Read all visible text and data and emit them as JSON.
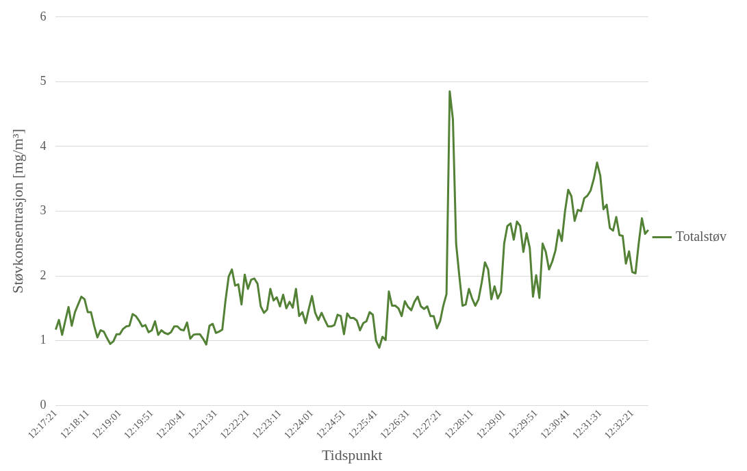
{
  "chart_data": {
    "type": "line",
    "xlabel": "Tidspunkt",
    "ylabel": "Støvkonsentrasjon [mg/m³]",
    "categories": [
      "12:17:21",
      null,
      null,
      null,
      null,
      null,
      null,
      null,
      null,
      null,
      "12:18:11",
      null,
      null,
      null,
      null,
      null,
      null,
      null,
      null,
      null,
      "12:19:01",
      null,
      null,
      null,
      null,
      null,
      null,
      null,
      null,
      null,
      "12:19:51",
      null,
      null,
      null,
      null,
      null,
      null,
      null,
      null,
      null,
      "12:20:41",
      null,
      null,
      null,
      null,
      null,
      null,
      null,
      null,
      null,
      "12:21:31",
      null,
      null,
      null,
      null,
      null,
      null,
      null,
      null,
      null,
      "12:22:21",
      null,
      null,
      null,
      null,
      null,
      null,
      null,
      null,
      null,
      "12:23:11",
      null,
      null,
      null,
      null,
      null,
      null,
      null,
      null,
      null,
      "12:24:01",
      null,
      null,
      null,
      null,
      null,
      null,
      null,
      null,
      null,
      "12:24:51",
      null,
      null,
      null,
      null,
      null,
      null,
      null,
      null,
      null,
      "12:25:41",
      null,
      null,
      null,
      null,
      null,
      null,
      null,
      null,
      null,
      "12:26:31",
      null,
      null,
      null,
      null,
      null,
      null,
      null,
      null,
      null,
      "12:27:21",
      null,
      null,
      null,
      null,
      null,
      null,
      null,
      null,
      null,
      "12:28:11",
      null,
      null,
      null,
      null,
      null,
      null,
      null,
      null,
      null,
      "12:29:01",
      null,
      null,
      null,
      null,
      null,
      null,
      null,
      null,
      null,
      "12:29:51",
      null,
      null,
      null,
      null,
      null,
      null,
      null,
      null,
      null,
      "12:30:41",
      null,
      null,
      null,
      null,
      null,
      null,
      null,
      null,
      null,
      "12:31:31",
      null,
      null,
      null,
      null,
      null,
      null,
      null,
      null,
      null,
      "12:32:21",
      null,
      null,
      null,
      null,
      null
    ],
    "series": [
      {
        "name": "Totalstøv",
        "color": "#538135",
        "values": [
          1.17,
          1.32,
          1.09,
          1.31,
          1.52,
          1.23,
          1.44,
          1.56,
          1.68,
          1.64,
          1.44,
          1.44,
          1.23,
          1.05,
          1.16,
          1.14,
          1.04,
          0.95,
          0.99,
          1.1,
          1.1,
          1.18,
          1.22,
          1.23,
          1.41,
          1.38,
          1.31,
          1.22,
          1.24,
          1.13,
          1.16,
          1.3,
          1.09,
          1.16,
          1.12,
          1.1,
          1.13,
          1.22,
          1.22,
          1.17,
          1.16,
          1.28,
          1.03,
          1.09,
          1.1,
          1.1,
          1.03,
          0.94,
          1.23,
          1.26,
          1.12,
          1.14,
          1.17,
          1.62,
          1.99,
          2.1,
          1.85,
          1.87,
          1.56,
          2.02,
          1.8,
          1.94,
          1.96,
          1.88,
          1.53,
          1.43,
          1.48,
          1.8,
          1.62,
          1.67,
          1.53,
          1.71,
          1.5,
          1.6,
          1.51,
          1.8,
          1.38,
          1.44,
          1.27,
          1.49,
          1.69,
          1.43,
          1.32,
          1.43,
          1.32,
          1.22,
          1.22,
          1.24,
          1.4,
          1.38,
          1.1,
          1.42,
          1.35,
          1.35,
          1.31,
          1.16,
          1.27,
          1.3,
          1.44,
          1.4,
          1.0,
          0.89,
          1.06,
          1.01,
          1.76,
          1.54,
          1.54,
          1.5,
          1.38,
          1.61,
          1.52,
          1.47,
          1.6,
          1.68,
          1.53,
          1.49,
          1.53,
          1.38,
          1.38,
          1.19,
          1.3,
          1.54,
          1.72,
          4.85,
          4.42,
          2.5,
          2.0,
          1.54,
          1.56,
          1.8,
          1.65,
          1.54,
          1.64,
          1.9,
          2.21,
          2.1,
          1.64,
          1.84,
          1.65,
          1.75,
          2.5,
          2.77,
          2.81,
          2.56,
          2.84,
          2.77,
          2.37,
          2.66,
          2.43,
          1.68,
          2.01,
          1.66,
          2.5,
          2.37,
          2.1,
          2.22,
          2.39,
          2.71,
          2.54,
          3.0,
          3.33,
          3.23,
          2.85,
          3.02,
          3.0,
          3.2,
          3.24,
          3.32,
          3.5,
          3.75,
          3.55,
          3.03,
          3.1,
          2.74,
          2.7,
          2.91,
          2.63,
          2.62,
          2.19,
          2.38,
          2.06,
          2.04,
          2.5,
          2.89,
          2.65,
          2.71
        ]
      }
    ],
    "ylim": [
      0,
      6
    ],
    "yticks": [
      0,
      1,
      2,
      3,
      4,
      5,
      6
    ],
    "grid": "y",
    "legend": "right",
    "marker": "none",
    "line_style": "solid"
  }
}
